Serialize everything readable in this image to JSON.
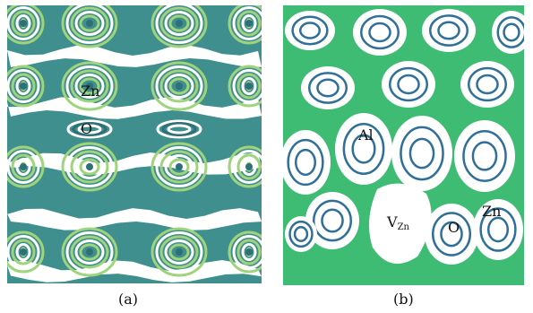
{
  "panels": [
    {
      "caption": "(a)",
      "atom_labels": {
        "zn": "Zn",
        "o": "O"
      },
      "colors": {
        "background": "#3e8f8d",
        "band": "#ffffff",
        "ring_light": "#9fd47c",
        "ring_dark": "#2f6f78"
      }
    },
    {
      "caption": "(b)",
      "atom_labels": {
        "al": "Al",
        "v_base": "V",
        "v_sub": "Zn",
        "o": "O",
        "zn": "Zn"
      },
      "colors": {
        "background": "#3fbc74",
        "band": "#ffffff",
        "ring_dark": "#2f6f9a"
      }
    }
  ]
}
